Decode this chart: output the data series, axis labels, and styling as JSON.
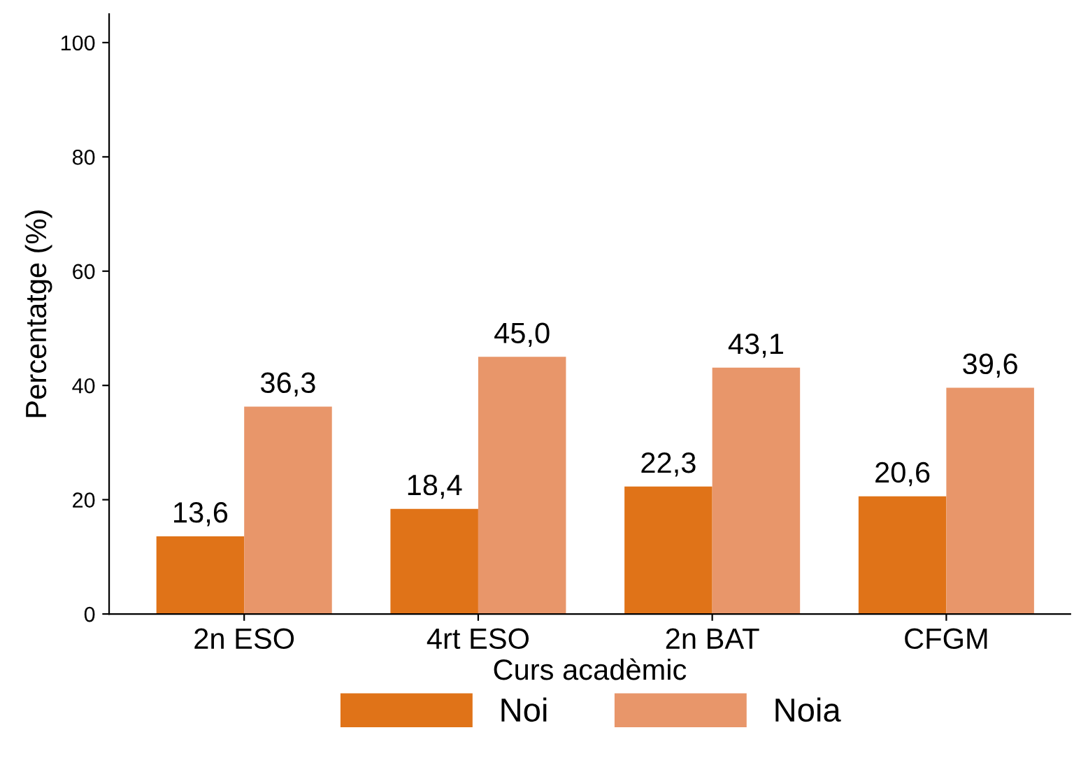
{
  "chart_data": {
    "type": "bar",
    "xlabel": "Curs acadèmic",
    "ylabel": "Percentatge (%)",
    "categories": [
      "2n ESO",
      "4rt ESO",
      "2n BAT",
      "CFGM"
    ],
    "series": [
      {
        "name": "Noi",
        "color": "#e07318",
        "values": [
          13.6,
          18.4,
          22.3,
          20.6
        ],
        "value_labels": [
          "13,6",
          "18,4",
          "22,3",
          "20,6"
        ]
      },
      {
        "name": "Noia",
        "color": "#e8966a",
        "values": [
          36.3,
          45.0,
          43.1,
          39.6
        ],
        "value_labels": [
          "36,3",
          "45,0",
          "43,1",
          "39,6"
        ]
      }
    ],
    "ylim": [
      0,
      105
    ],
    "yticks": [
      0,
      20,
      40,
      60,
      80,
      100
    ],
    "grid": false,
    "legend": "bottom"
  }
}
